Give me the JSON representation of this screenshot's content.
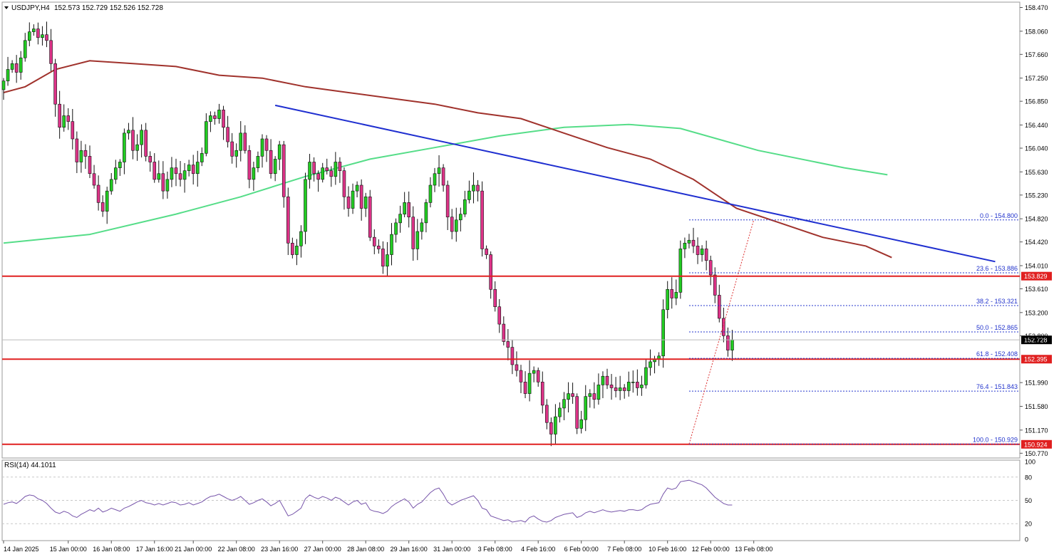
{
  "header": {
    "symbol": "USDJPY,H4",
    "ohlc": "152.573 152.729 152.526 152.728"
  },
  "rsi_panel": {
    "label": "RSI(14) 44.1011",
    "ticks": [
      "100",
      "80",
      "50",
      "20",
      "0"
    ]
  },
  "colors": {
    "bull": "#22cc22",
    "bear": "#dd3388",
    "wick": "#111111",
    "sma_red": "#a0322c",
    "sma_green": "#55dd88",
    "trendline": "#1f2fd0",
    "support": "#e02020",
    "fib": "#2233cc",
    "rsi": "#7755aa",
    "price_tag": "#000000"
  },
  "chart_data": {
    "type": "candlestick",
    "symbol": "USDJPY",
    "timeframe": "H4",
    "y_ticks": [
      "158.470",
      "158.060",
      "157.660",
      "157.250",
      "156.850",
      "156.440",
      "156.040",
      "155.630",
      "155.230",
      "154.820",
      "154.420",
      "154.010",
      "153.610",
      "153.200",
      "152.800",
      "151.990",
      "151.580",
      "151.170",
      "150.770"
    ],
    "ylim": [
      150.7,
      158.55
    ],
    "x_labels": [
      {
        "i": 0,
        "label": "14 Jan 2025"
      },
      {
        "i": 15,
        "label": "15 Jan 00:00"
      },
      {
        "i": 25,
        "label": "16 Jan 08:00"
      },
      {
        "i": 35,
        "label": "17 Jan 16:00"
      },
      {
        "i": 44,
        "label": "21 Jan 00:00"
      },
      {
        "i": 54,
        "label": "22 Jan 08:00"
      },
      {
        "i": 64,
        "label": "23 Jan 16:00"
      },
      {
        "i": 74,
        "label": "27 Jan 00:00"
      },
      {
        "i": 84,
        "label": "28 Jan 08:00"
      },
      {
        "i": 94,
        "label": "29 Jan 16:00"
      },
      {
        "i": 104,
        "label": "31 Jan 00:00"
      },
      {
        "i": 114,
        "label": "3 Feb 08:00"
      },
      {
        "i": 124,
        "label": "4 Feb 16:00"
      },
      {
        "i": 134,
        "label": "6 Feb 00:00"
      },
      {
        "i": 144,
        "label": "7 Feb 08:00"
      },
      {
        "i": 154,
        "label": "10 Feb 16:00"
      },
      {
        "i": 164,
        "label": "12 Feb 00:00"
      },
      {
        "i": 174,
        "label": "13 Feb 08:00"
      }
    ],
    "closes": [
      157.2,
      157.4,
      157.5,
      157.35,
      157.6,
      157.9,
      158.05,
      158.1,
      157.95,
      158.0,
      157.9,
      157.5,
      156.8,
      156.4,
      156.6,
      156.5,
      156.2,
      155.8,
      156.0,
      155.9,
      155.6,
      155.4,
      155.1,
      154.95,
      155.3,
      155.5,
      155.7,
      155.8,
      156.3,
      156.35,
      156.0,
      156.1,
      156.35,
      155.9,
      155.8,
      155.5,
      155.6,
      155.3,
      155.5,
      155.7,
      155.6,
      155.5,
      155.65,
      155.75,
      155.6,
      155.8,
      155.95,
      156.5,
      156.6,
      156.55,
      156.7,
      156.4,
      156.15,
      155.9,
      156.0,
      156.3,
      156.0,
      155.5,
      155.7,
      155.9,
      156.2,
      156.0,
      155.6,
      155.85,
      156.1,
      155.2,
      154.4,
      154.2,
      154.35,
      154.6,
      155.5,
      155.8,
      155.6,
      155.5,
      155.7,
      155.65,
      155.55,
      155.8,
      155.65,
      155.2,
      155.0,
      155.3,
      155.4,
      155.0,
      155.2,
      154.5,
      154.35,
      154.3,
      154.0,
      154.2,
      154.55,
      154.75,
      154.9,
      155.1,
      154.85,
      154.3,
      154.6,
      154.75,
      155.1,
      155.4,
      155.6,
      155.7,
      155.4,
      154.85,
      154.6,
      154.8,
      154.9,
      155.15,
      155.3,
      155.4,
      155.3,
      154.3,
      154.2,
      153.6,
      153.3,
      153.0,
      152.7,
      152.6,
      152.3,
      152.2,
      152.0,
      151.8,
      152.15,
      152.2,
      152.0,
      151.6,
      151.3,
      151.1,
      151.4,
      151.55,
      151.7,
      151.8,
      151.75,
      151.2,
      151.35,
      151.75,
      151.8,
      151.7,
      151.95,
      152.1,
      151.95,
      151.9,
      151.85,
      151.9,
      151.85,
      152.0,
      152.0,
      151.9,
      151.95,
      152.25,
      152.35,
      152.4,
      152.45,
      153.25,
      153.6,
      153.45,
      153.55,
      154.3,
      154.4,
      154.45,
      154.35,
      154.2,
      154.3,
      154.1,
      153.85,
      153.5,
      153.1,
      152.8,
      152.55,
      152.73
    ],
    "candle_opens_note": "",
    "sma_red": {
      "name": "",
      "start_index": 0,
      "points": [
        [
          0,
          157.0
        ],
        [
          5,
          157.1
        ],
        [
          12,
          157.4
        ],
        [
          20,
          157.55
        ],
        [
          30,
          157.5
        ],
        [
          40,
          157.45
        ],
        [
          50,
          157.3
        ],
        [
          60,
          157.25
        ],
        [
          70,
          157.1
        ],
        [
          80,
          157.0
        ],
        [
          90,
          156.9
        ],
        [
          100,
          156.8
        ],
        [
          110,
          156.65
        ],
        [
          120,
          156.55
        ],
        [
          130,
          156.3
        ],
        [
          140,
          156.05
        ],
        [
          150,
          155.85
        ],
        [
          160,
          155.5
        ],
        [
          170,
          155.0
        ],
        [
          180,
          154.75
        ],
        [
          190,
          154.5
        ],
        [
          200,
          154.35
        ],
        [
          206,
          154.15
        ]
      ]
    },
    "sma_green": {
      "name": "",
      "points": [
        [
          0,
          154.4
        ],
        [
          20,
          154.55
        ],
        [
          40,
          154.9
        ],
        [
          55,
          155.2
        ],
        [
          70,
          155.55
        ],
        [
          85,
          155.85
        ],
        [
          100,
          156.05
        ],
        [
          115,
          156.25
        ],
        [
          130,
          156.4
        ],
        [
          145,
          156.45
        ],
        [
          157,
          156.38
        ],
        [
          175,
          156.0
        ],
        [
          195,
          155.7
        ],
        [
          205,
          155.58
        ]
      ]
    },
    "trendline": {
      "from": [
        63,
        156.78
      ],
      "to": [
        230,
        154.08
      ]
    },
    "support_lines": [
      {
        "price": 153.829,
        "label": "153.829"
      },
      {
        "price": 152.395,
        "label": "152.395"
      },
      {
        "price": 150.924,
        "label": "150.924"
      }
    ],
    "last_price": {
      "price": 152.728,
      "label": "152.728"
    },
    "fibonacci": {
      "from_index": 159,
      "levels": [
        {
          "label": "0.0 - 154.800",
          "price": 154.8
        },
        {
          "label": "23.6 - 153.886",
          "price": 153.886
        },
        {
          "label": "38.2 - 153.321",
          "price": 153.321
        },
        {
          "label": "50.0 - 152.865",
          "price": 152.865
        },
        {
          "label": "61.8 - 152.408",
          "price": 152.408
        },
        {
          "label": "76.4 - 151.843",
          "price": 151.843
        },
        {
          "label": "100.0 - 150.929",
          "price": 150.929
        }
      ]
    },
    "rsi": {
      "name": "RSI(14)",
      "last": 44.1011,
      "ylim": [
        0,
        100
      ],
      "values": [
        45,
        47,
        48,
        46,
        50,
        55,
        57,
        56,
        52,
        50,
        46,
        40,
        35,
        33,
        36,
        34,
        30,
        28,
        32,
        35,
        38,
        36,
        40,
        35,
        37,
        40,
        38,
        36,
        40,
        42,
        45,
        48,
        50,
        47,
        46,
        44,
        46,
        44,
        46,
        48,
        47,
        44,
        45,
        47,
        44,
        46,
        48,
        52,
        55,
        56,
        58,
        55,
        52,
        50,
        52,
        55,
        50,
        45,
        47,
        50,
        52,
        48,
        43,
        46,
        50,
        40,
        30,
        32,
        36,
        40,
        52,
        57,
        54,
        52,
        55,
        53,
        50,
        54,
        52,
        48,
        44,
        48,
        50,
        45,
        47,
        38,
        36,
        35,
        33,
        36,
        42,
        46,
        49,
        52,
        48,
        40,
        45,
        48,
        54,
        60,
        64,
        66,
        58,
        48,
        44,
        47,
        50,
        52,
        54,
        56,
        50,
        40,
        38,
        30,
        28,
        26,
        24,
        25,
        22,
        23,
        24,
        22,
        28,
        30,
        26,
        23,
        22,
        24,
        28,
        30,
        32,
        33,
        34,
        28,
        30,
        34,
        36,
        34,
        36,
        38,
        36,
        35,
        36,
        37,
        36,
        38,
        38,
        37,
        38,
        42,
        45,
        46,
        47,
        58,
        66,
        64,
        66,
        74,
        75,
        76,
        74,
        72,
        70,
        66,
        60,
        54,
        50,
        46,
        44,
        44
      ]
    }
  }
}
